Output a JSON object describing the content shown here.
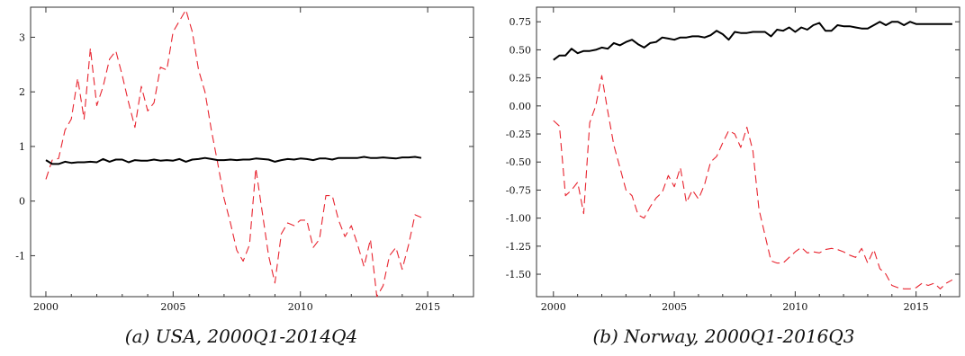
{
  "chart_data": [
    {
      "type": "line",
      "caption": "(a) USA, 2000Q1-2014Q4",
      "xlim": [
        1999.4,
        2016.8
      ],
      "ylim": [
        -1.75,
        3.55
      ],
      "xticks": [
        2000,
        2005,
        2010,
        2015
      ],
      "yticks": [
        -1,
        0,
        1,
        2,
        3
      ],
      "ytick_labels": [
        "-1",
        "0",
        "1",
        "2",
        "3"
      ],
      "grid": false,
      "series": [
        {
          "style": "solid",
          "color": "#000000",
          "x": [
            2000.0,
            2000.25,
            2000.5,
            2000.75,
            2001.0,
            2001.25,
            2001.5,
            2001.75,
            2002.0,
            2002.25,
            2002.5,
            2002.75,
            2003.0,
            2003.25,
            2003.5,
            2003.75,
            2004.0,
            2004.25,
            2004.5,
            2004.75,
            2005.0,
            2005.25,
            2005.5,
            2005.75,
            2006.0,
            2006.25,
            2006.5,
            2006.75,
            2007.0,
            2007.25,
            2007.5,
            2007.75,
            2008.0,
            2008.25,
            2008.5,
            2008.75,
            2009.0,
            2009.25,
            2009.5,
            2009.75,
            2010.0,
            2010.25,
            2010.5,
            2010.75,
            2011.0,
            2011.25,
            2011.5,
            2011.75,
            2012.0,
            2012.25,
            2012.5,
            2012.75,
            2013.0,
            2013.25,
            2013.5,
            2013.75,
            2014.0,
            2014.25,
            2014.5,
            2014.75
          ],
          "y": [
            0.75,
            0.68,
            0.68,
            0.72,
            0.7,
            0.71,
            0.71,
            0.72,
            0.71,
            0.77,
            0.72,
            0.76,
            0.76,
            0.71,
            0.75,
            0.74,
            0.74,
            0.76,
            0.74,
            0.75,
            0.74,
            0.77,
            0.72,
            0.76,
            0.77,
            0.79,
            0.77,
            0.75,
            0.75,
            0.76,
            0.75,
            0.76,
            0.76,
            0.78,
            0.77,
            0.76,
            0.72,
            0.75,
            0.77,
            0.76,
            0.78,
            0.77,
            0.75,
            0.78,
            0.78,
            0.76,
            0.79,
            0.79,
            0.79,
            0.79,
            0.81,
            0.79,
            0.79,
            0.8,
            0.79,
            0.78,
            0.8,
            0.8,
            0.81,
            0.79
          ]
        },
        {
          "style": "dashed",
          "color": "#e8242f",
          "x": [
            2000.0,
            2000.25,
            2000.5,
            2000.75,
            2001.0,
            2001.25,
            2001.5,
            2001.75,
            2002.0,
            2002.25,
            2002.5,
            2002.75,
            2003.0,
            2003.25,
            2003.5,
            2003.75,
            2004.0,
            2004.25,
            2004.5,
            2004.75,
            2005.0,
            2005.25,
            2005.5,
            2005.75,
            2006.0,
            2006.25,
            2006.5,
            2006.75,
            2007.0,
            2007.25,
            2007.5,
            2007.75,
            2008.0,
            2008.25,
            2008.5,
            2008.75,
            2009.0,
            2009.25,
            2009.5,
            2009.75,
            2010.0,
            2010.25,
            2010.5,
            2010.75,
            2011.0,
            2011.25,
            2011.5,
            2011.75,
            2012.0,
            2012.25,
            2012.5,
            2012.75,
            2013.0,
            2013.25,
            2013.5,
            2013.75,
            2014.0,
            2014.25,
            2014.5,
            2014.75
          ],
          "y": [
            0.4,
            0.75,
            0.78,
            1.3,
            1.5,
            2.25,
            1.5,
            2.8,
            1.75,
            2.1,
            2.6,
            2.75,
            2.3,
            1.8,
            1.35,
            2.1,
            1.65,
            1.8,
            2.45,
            2.4,
            3.1,
            3.3,
            3.5,
            3.1,
            2.4,
            2.0,
            1.3,
            0.7,
            0.05,
            -0.4,
            -0.9,
            -1.1,
            -0.8,
            0.6,
            -0.2,
            -1.0,
            -1.5,
            -0.6,
            -0.4,
            -0.45,
            -0.35,
            -0.35,
            -0.85,
            -0.7,
            0.1,
            0.1,
            -0.35,
            -0.65,
            -0.45,
            -0.8,
            -1.2,
            -0.7,
            -1.75,
            -1.55,
            -1.0,
            -0.85,
            -1.25,
            -0.8,
            -0.25,
            -0.3
          ]
        }
      ]
    },
    {
      "type": "line",
      "caption": "(b) Norway, 2000Q1-2016Q3",
      "xlim": [
        1999.3,
        2016.8
      ],
      "ylim": [
        -1.7,
        0.88
      ],
      "xticks": [
        2000,
        2005,
        2010,
        2015
      ],
      "yticks": [
        -1.5,
        -1.25,
        -1.0,
        -0.75,
        -0.5,
        -0.25,
        0.0,
        0.25,
        0.5,
        0.75
      ],
      "ytick_labels": [
        "-1.50",
        "-1.25",
        "-1.00",
        "-0.75",
        "-0.50",
        "-0.25",
        "0.00",
        "0.25",
        "0.50",
        "0.75"
      ],
      "grid": false,
      "series": [
        {
          "style": "solid",
          "color": "#000000",
          "x": [
            2000.0,
            2000.25,
            2000.5,
            2000.75,
            2001.0,
            2001.25,
            2001.5,
            2001.75,
            2002.0,
            2002.25,
            2002.5,
            2002.75,
            2003.0,
            2003.25,
            2003.5,
            2003.75,
            2004.0,
            2004.25,
            2004.5,
            2004.75,
            2005.0,
            2005.25,
            2005.5,
            2005.75,
            2006.0,
            2006.25,
            2006.5,
            2006.75,
            2007.0,
            2007.25,
            2007.5,
            2007.75,
            2008.0,
            2008.25,
            2008.5,
            2008.75,
            2009.0,
            2009.25,
            2009.5,
            2009.75,
            2010.0,
            2010.25,
            2010.5,
            2010.75,
            2011.0,
            2011.25,
            2011.5,
            2011.75,
            2012.0,
            2012.25,
            2012.5,
            2012.75,
            2013.0,
            2013.25,
            2013.5,
            2013.75,
            2014.0,
            2014.25,
            2014.5,
            2014.75,
            2015.0,
            2015.25,
            2015.5,
            2015.75,
            2016.0,
            2016.25,
            2016.5
          ],
          "y": [
            0.41,
            0.45,
            0.45,
            0.51,
            0.47,
            0.49,
            0.49,
            0.5,
            0.52,
            0.51,
            0.56,
            0.54,
            0.57,
            0.59,
            0.55,
            0.52,
            0.56,
            0.57,
            0.61,
            0.6,
            0.59,
            0.61,
            0.61,
            0.62,
            0.62,
            0.61,
            0.63,
            0.67,
            0.64,
            0.59,
            0.66,
            0.65,
            0.65,
            0.66,
            0.66,
            0.66,
            0.62,
            0.68,
            0.67,
            0.7,
            0.66,
            0.7,
            0.68,
            0.72,
            0.74,
            0.67,
            0.67,
            0.72,
            0.71,
            0.71,
            0.7,
            0.69,
            0.69,
            0.72,
            0.75,
            0.72,
            0.75,
            0.75,
            0.72,
            0.75,
            0.73,
            0.73,
            0.73,
            0.73,
            0.73,
            0.73,
            0.73
          ]
        },
        {
          "style": "dashed",
          "color": "#e8242f",
          "x": [
            2000.0,
            2000.25,
            2000.5,
            2000.75,
            2001.0,
            2001.25,
            2001.5,
            2001.75,
            2002.0,
            2002.25,
            2002.5,
            2002.75,
            2003.0,
            2003.25,
            2003.5,
            2003.75,
            2004.0,
            2004.25,
            2004.5,
            2004.75,
            2005.0,
            2005.25,
            2005.5,
            2005.75,
            2006.0,
            2006.25,
            2006.5,
            2006.75,
            2007.0,
            2007.25,
            2007.5,
            2007.75,
            2008.0,
            2008.25,
            2008.5,
            2008.75,
            2009.0,
            2009.25,
            2009.5,
            2009.75,
            2010.0,
            2010.25,
            2010.5,
            2010.75,
            2011.0,
            2011.25,
            2011.5,
            2011.75,
            2012.0,
            2012.25,
            2012.5,
            2012.75,
            2013.0,
            2013.25,
            2013.5,
            2013.75,
            2014.0,
            2014.25,
            2014.5,
            2014.75,
            2015.0,
            2015.25,
            2015.5,
            2015.75,
            2016.0,
            2016.25,
            2016.5
          ],
          "y": [
            -0.13,
            -0.18,
            -0.8,
            -0.75,
            -0.68,
            -0.96,
            -0.15,
            0.0,
            0.27,
            -0.05,
            -0.35,
            -0.55,
            -0.75,
            -0.8,
            -0.97,
            -1.0,
            -0.9,
            -0.82,
            -0.77,
            -0.62,
            -0.72,
            -0.55,
            -0.86,
            -0.75,
            -0.83,
            -0.7,
            -0.5,
            -0.45,
            -0.33,
            -0.22,
            -0.25,
            -0.37,
            -0.19,
            -0.4,
            -0.92,
            -1.15,
            -1.38,
            -1.4,
            -1.4,
            -1.35,
            -1.3,
            -1.26,
            -1.31,
            -1.3,
            -1.31,
            -1.28,
            -1.27,
            -1.28,
            -1.3,
            -1.33,
            -1.35,
            -1.27,
            -1.4,
            -1.28,
            -1.45,
            -1.5,
            -1.6,
            -1.62,
            -1.63,
            -1.63,
            -1.62,
            -1.58,
            -1.6,
            -1.58,
            -1.63,
            -1.58,
            -1.55
          ]
        }
      ]
    }
  ]
}
